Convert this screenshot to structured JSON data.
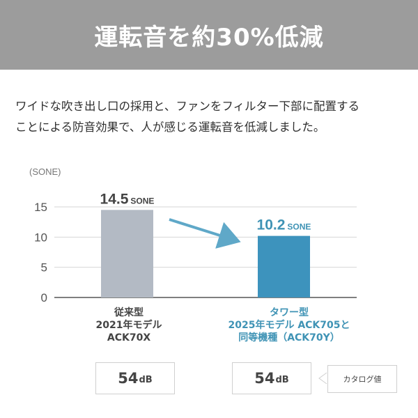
{
  "banner": {
    "title": "運転音を約30%低減"
  },
  "description": {
    "line1": "ワイドな吹き出し口の採用と、ファンをフィルター下部に配置する",
    "line2": "ことによる防音効果で、人が感じる運転音を低減しました。"
  },
  "chart_data": {
    "type": "bar",
    "ylabel": "(SONE)",
    "ylim": [
      0,
      15
    ],
    "yticks": [
      "0",
      "5",
      "10",
      "15"
    ],
    "categories": [
      {
        "lines": [
          "従来型",
          "2021年モデル",
          "ACK70X"
        ]
      },
      {
        "lines": [
          "タワー型",
          "2025年モデル ACK705と",
          "同等機種（ACK70Y）"
        ]
      }
    ],
    "values": [
      14.5,
      10.2
    ],
    "value_labels": [
      {
        "number": "14.5",
        "unit": "SONE"
      },
      {
        "number": "10.2",
        "unit": "SONE"
      }
    ],
    "colors": {
      "bar_old": "#b3bac4",
      "bar_new": "#3d93bd",
      "label_new": "#3f93b5",
      "arrow": "#5fa8c8",
      "grid": "#d6d6d6"
    }
  },
  "decibels": [
    {
      "number": "54",
      "unit": "dB"
    },
    {
      "number": "54",
      "unit": "dB"
    }
  ],
  "catalog_note": "カタログ値"
}
